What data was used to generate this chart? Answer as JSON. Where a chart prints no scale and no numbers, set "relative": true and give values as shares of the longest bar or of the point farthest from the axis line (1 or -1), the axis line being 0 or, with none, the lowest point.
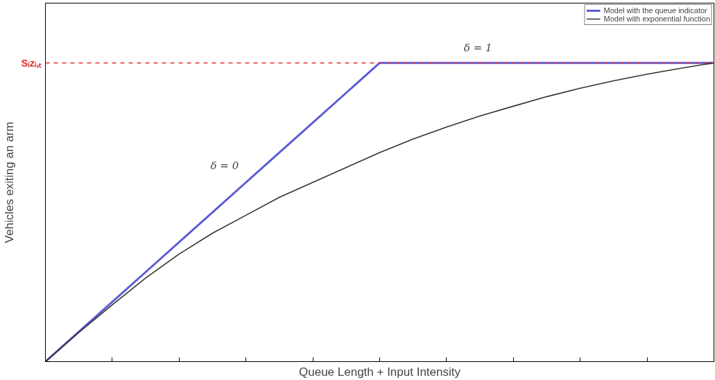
{
  "chart_data": {
    "type": "line",
    "relative": true,
    "xlabel": "Queue Length + Input Intensity",
    "ylabel": "Vehicles exiting an arm",
    "categories": [
      null,
      null,
      null,
      null,
      null,
      null,
      null,
      null,
      null,
      null,
      null,
      null,
      null,
      null,
      null,
      null,
      null,
      null,
      null,
      null,
      null
    ],
    "series": [
      {
        "name": "Model with the queue indicator",
        "color": "#5b5bd6",
        "values": [
          0,
          0.1,
          0.2,
          0.3,
          0.4,
          0.5,
          0.6,
          0.7,
          0.8,
          0.9,
          1,
          1,
          1,
          1,
          1,
          1,
          1,
          1,
          1,
          1,
          1
        ]
      },
      {
        "name": "Model with exponential function",
        "color": "#333333",
        "values": [
          0,
          0.098,
          0.19,
          0.28,
          0.36,
          0.43,
          0.49,
          0.55,
          0.6,
          0.65,
          0.7,
          0.745,
          0.785,
          0.822,
          0.855,
          0.887,
          0.915,
          0.94,
          0.962,
          0.982,
          1
        ]
      }
    ],
    "ref_lines": [
      {
        "axis": "y",
        "value": 1,
        "label": "Sᵢzᵢ,ₜ",
        "color": "#e03030",
        "line_style": "dashed"
      }
    ],
    "annotations": [
      "δ = 0",
      "δ = 1"
    ],
    "legend": "top right",
    "grid": false,
    "marker": "none",
    "line_style": "solid"
  }
}
